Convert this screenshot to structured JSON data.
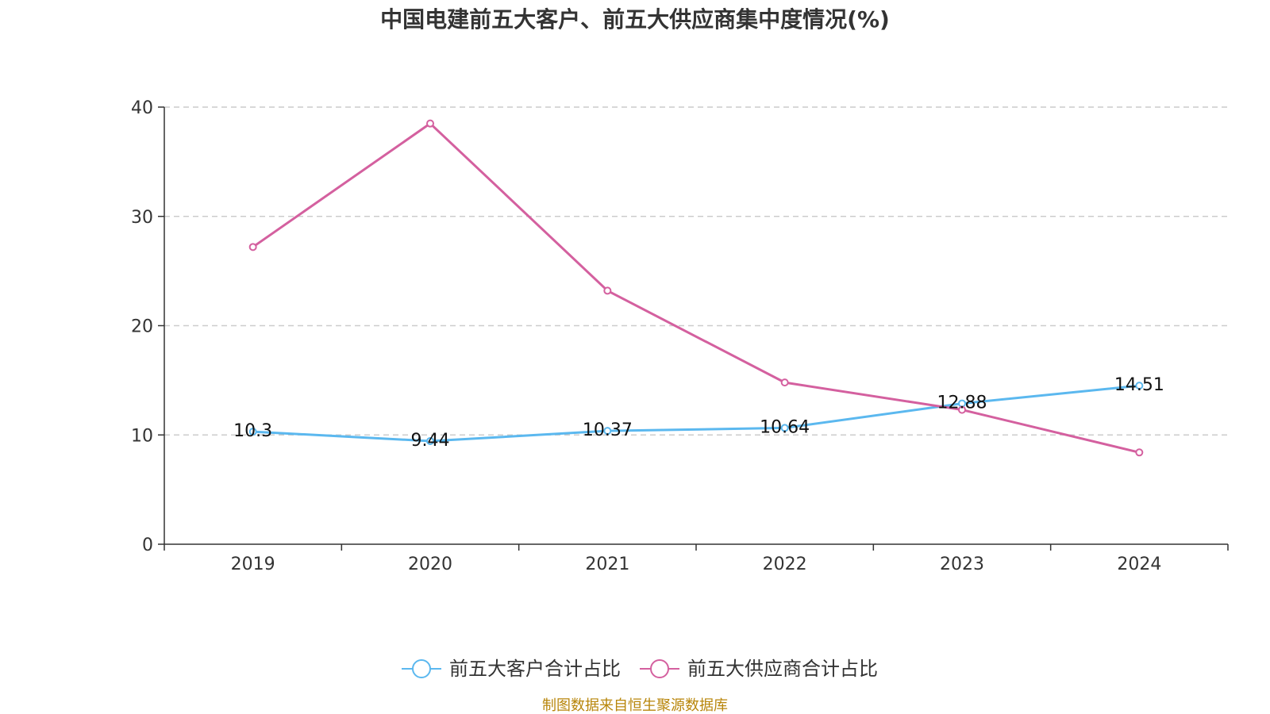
{
  "chart_data": {
    "type": "line",
    "title": "中国电建前五大客户、前五大供应商集中度情况(%)",
    "categories": [
      "2019",
      "2020",
      "2021",
      "2022",
      "2023",
      "2024"
    ],
    "ylim": [
      0,
      40
    ],
    "yticks": [
      "0",
      "10",
      "20",
      "30",
      "40"
    ],
    "grid": true,
    "legend_position": "bottom-center",
    "series": [
      {
        "name": "前五大客户合计占比",
        "color": "#5bb8ef",
        "values": [
          10.3,
          9.44,
          10.37,
          10.64,
          12.88,
          14.51
        ],
        "labels": [
          "10.3",
          "9.44",
          "10.37",
          "10.64",
          "12.88",
          "14.51"
        ]
      },
      {
        "name": "前五大供应商合计占比",
        "color": "#d4609f",
        "values": [
          27.2,
          38.5,
          23.2,
          14.8,
          12.3,
          8.4
        ]
      }
    ]
  },
  "footer": {
    "source": "制图数据来自恒生聚源数据库"
  }
}
